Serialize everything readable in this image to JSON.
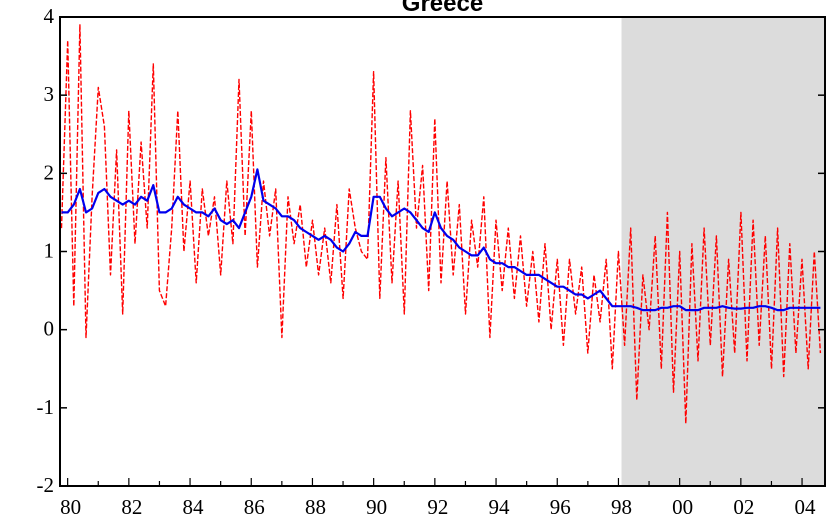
{
  "chart_data": {
    "type": "line",
    "title": "Greece",
    "xlabel": "",
    "ylabel": "",
    "x_range": [
      1979.75,
      2004.75
    ],
    "y_range": [
      -2,
      4
    ],
    "shaded_region": {
      "x_start": 1998.1,
      "x_end": 2004.75,
      "color": "#dcdcdc"
    },
    "x_ticks": [
      {
        "value": 1980,
        "label": "80"
      },
      {
        "value": 1982,
        "label": "82"
      },
      {
        "value": 1984,
        "label": "84"
      },
      {
        "value": 1986,
        "label": "86"
      },
      {
        "value": 1988,
        "label": "88"
      },
      {
        "value": 1990,
        "label": "90"
      },
      {
        "value": 1992,
        "label": "92"
      },
      {
        "value": 1994,
        "label": "94"
      },
      {
        "value": 1996,
        "label": "96"
      },
      {
        "value": 1998,
        "label": "98"
      },
      {
        "value": 2000,
        "label": "00"
      },
      {
        "value": 2002,
        "label": "02"
      },
      {
        "value": 2004,
        "label": "04"
      }
    ],
    "y_ticks": [
      {
        "value": 4,
        "label": "4"
      },
      {
        "value": 3,
        "label": "3"
      },
      {
        "value": 2,
        "label": "2"
      },
      {
        "value": 1,
        "label": "1"
      },
      {
        "value": 0,
        "label": "0"
      },
      {
        "value": -1,
        "label": "-1"
      },
      {
        "value": -2,
        "label": "-2"
      }
    ],
    "series": [
      {
        "color": "#ff0000",
        "style": "dashed",
        "x": [
          1979.8,
          1980.0,
          1980.2,
          1980.4,
          1980.6,
          1980.8,
          1981.0,
          1981.2,
          1981.4,
          1981.6,
          1981.8,
          1982.0,
          1982.2,
          1982.4,
          1982.6,
          1982.8,
          1983.0,
          1983.2,
          1983.4,
          1983.6,
          1983.8,
          1984.0,
          1984.2,
          1984.4,
          1984.6,
          1984.8,
          1985.0,
          1985.2,
          1985.4,
          1985.6,
          1985.8,
          1986.0,
          1986.2,
          1986.4,
          1986.6,
          1986.8,
          1987.0,
          1987.2,
          1987.4,
          1987.6,
          1987.8,
          1988.0,
          1988.2,
          1988.4,
          1988.6,
          1988.8,
          1989.0,
          1989.2,
          1989.4,
          1989.6,
          1989.8,
          1990.0,
          1990.2,
          1990.4,
          1990.6,
          1990.8,
          1991.0,
          1991.2,
          1991.4,
          1991.6,
          1991.8,
          1992.0,
          1992.2,
          1992.4,
          1992.6,
          1992.8,
          1993.0,
          1993.2,
          1993.4,
          1993.6,
          1993.8,
          1994.0,
          1994.2,
          1994.4,
          1994.6,
          1994.8,
          1995.0,
          1995.2,
          1995.4,
          1995.6,
          1995.8,
          1996.0,
          1996.2,
          1996.4,
          1996.6,
          1996.8,
          1997.0,
          1997.2,
          1997.4,
          1997.6,
          1997.8,
          1998.0,
          1998.2,
          1998.4,
          1998.6,
          1998.8,
          1999.0,
          1999.2,
          1999.4,
          1999.6,
          1999.8,
          2000.0,
          2000.2,
          2000.4,
          2000.6,
          2000.8,
          2001.0,
          2001.2,
          2001.4,
          2001.6,
          2001.8,
          2002.0,
          2002.2,
          2002.4,
          2002.6,
          2002.8,
          2003.0,
          2003.2,
          2003.4,
          2003.6,
          2003.8,
          2004.0,
          2004.2,
          2004.4,
          2004.6
        ],
        "values": [
          1.3,
          3.7,
          0.3,
          3.9,
          -0.1,
          1.7,
          3.1,
          2.6,
          0.7,
          2.3,
          0.2,
          2.8,
          1.1,
          2.4,
          1.3,
          3.4,
          0.5,
          0.3,
          1.3,
          2.8,
          1.0,
          1.9,
          0.6,
          1.8,
          1.2,
          1.7,
          0.7,
          1.9,
          1.1,
          3.2,
          1.2,
          2.8,
          0.8,
          1.9,
          1.2,
          1.8,
          -0.1,
          1.7,
          1.1,
          1.6,
          0.8,
          1.4,
          0.7,
          1.3,
          0.6,
          1.6,
          0.4,
          1.8,
          1.3,
          1.0,
          0.9,
          3.3,
          0.4,
          2.2,
          0.6,
          1.9,
          0.2,
          2.8,
          1.3,
          2.1,
          0.5,
          2.7,
          0.6,
          1.9,
          0.7,
          1.6,
          0.2,
          1.4,
          0.8,
          1.7,
          -0.1,
          1.4,
          0.5,
          1.3,
          0.4,
          1.2,
          0.3,
          1.0,
          0.1,
          1.1,
          0.0,
          0.9,
          -0.2,
          0.9,
          0.2,
          0.8,
          -0.3,
          0.7,
          0.1,
          0.9,
          -0.5,
          1.0,
          -0.2,
          1.3,
          -0.9,
          0.7,
          0.0,
          1.2,
          -0.5,
          1.5,
          -0.8,
          1.0,
          -1.2,
          1.1,
          -0.4,
          1.3,
          -0.2,
          1.2,
          -0.6,
          0.9,
          -0.3,
          1.5,
          -0.4,
          1.4,
          -0.2,
          1.2,
          -0.5,
          1.3,
          -0.6,
          1.1,
          -0.3,
          0.9,
          -0.5,
          1.0,
          -0.3
        ]
      },
      {
        "color": "#0000ee",
        "style": "solid",
        "x": [
          1979.8,
          1980.0,
          1980.2,
          1980.4,
          1980.6,
          1980.8,
          1981.0,
          1981.2,
          1981.4,
          1981.6,
          1981.8,
          1982.0,
          1982.2,
          1982.4,
          1982.6,
          1982.8,
          1983.0,
          1983.2,
          1983.4,
          1983.6,
          1983.8,
          1984.0,
          1984.2,
          1984.4,
          1984.6,
          1984.8,
          1985.0,
          1985.2,
          1985.4,
          1985.6,
          1985.8,
          1986.0,
          1986.2,
          1986.4,
          1986.6,
          1986.8,
          1987.0,
          1987.2,
          1987.4,
          1987.6,
          1987.8,
          1988.0,
          1988.2,
          1988.4,
          1988.6,
          1988.8,
          1989.0,
          1989.2,
          1989.4,
          1989.6,
          1989.8,
          1990.0,
          1990.2,
          1990.4,
          1990.6,
          1990.8,
          1991.0,
          1991.2,
          1991.4,
          1991.6,
          1991.8,
          1992.0,
          1992.2,
          1992.4,
          1992.6,
          1992.8,
          1993.0,
          1993.2,
          1993.4,
          1993.6,
          1993.8,
          1994.0,
          1994.2,
          1994.4,
          1994.6,
          1994.8,
          1995.0,
          1995.2,
          1995.4,
          1995.6,
          1995.8,
          1996.0,
          1996.2,
          1996.4,
          1996.6,
          1996.8,
          1997.0,
          1997.2,
          1997.4,
          1997.6,
          1997.8,
          1998.0,
          1998.2,
          1998.4,
          1998.6,
          1998.8,
          1999.0,
          1999.2,
          1999.4,
          1999.6,
          1999.8,
          2000.0,
          2000.2,
          2000.4,
          2000.6,
          2000.8,
          2001.0,
          2001.2,
          2001.4,
          2001.6,
          2001.8,
          2002.0,
          2002.2,
          2002.4,
          2002.6,
          2002.8,
          2003.0,
          2003.2,
          2003.4,
          2003.6,
          2003.8,
          2004.0,
          2004.2,
          2004.4,
          2004.6
        ],
        "values": [
          1.5,
          1.5,
          1.6,
          1.8,
          1.5,
          1.55,
          1.75,
          1.8,
          1.7,
          1.65,
          1.6,
          1.65,
          1.6,
          1.7,
          1.65,
          1.85,
          1.5,
          1.5,
          1.55,
          1.7,
          1.6,
          1.55,
          1.5,
          1.5,
          1.45,
          1.55,
          1.4,
          1.35,
          1.4,
          1.3,
          1.5,
          1.7,
          2.05,
          1.65,
          1.6,
          1.55,
          1.45,
          1.45,
          1.4,
          1.3,
          1.25,
          1.2,
          1.15,
          1.2,
          1.15,
          1.05,
          1.0,
          1.1,
          1.25,
          1.2,
          1.2,
          1.7,
          1.7,
          1.55,
          1.45,
          1.5,
          1.55,
          1.5,
          1.4,
          1.3,
          1.25,
          1.5,
          1.3,
          1.2,
          1.15,
          1.05,
          1.0,
          0.95,
          0.95,
          1.05,
          0.9,
          0.85,
          0.85,
          0.8,
          0.8,
          0.75,
          0.7,
          0.7,
          0.7,
          0.65,
          0.6,
          0.55,
          0.55,
          0.5,
          0.45,
          0.45,
          0.4,
          0.45,
          0.5,
          0.4,
          0.3,
          0.3,
          0.3,
          0.3,
          0.28,
          0.25,
          0.25,
          0.25,
          0.28,
          0.28,
          0.3,
          0.3,
          0.25,
          0.25,
          0.25,
          0.28,
          0.28,
          0.28,
          0.3,
          0.28,
          0.27,
          0.27,
          0.28,
          0.28,
          0.3,
          0.3,
          0.28,
          0.25,
          0.25,
          0.28,
          0.28,
          0.28,
          0.28,
          0.28,
          0.28
        ]
      }
    ]
  }
}
